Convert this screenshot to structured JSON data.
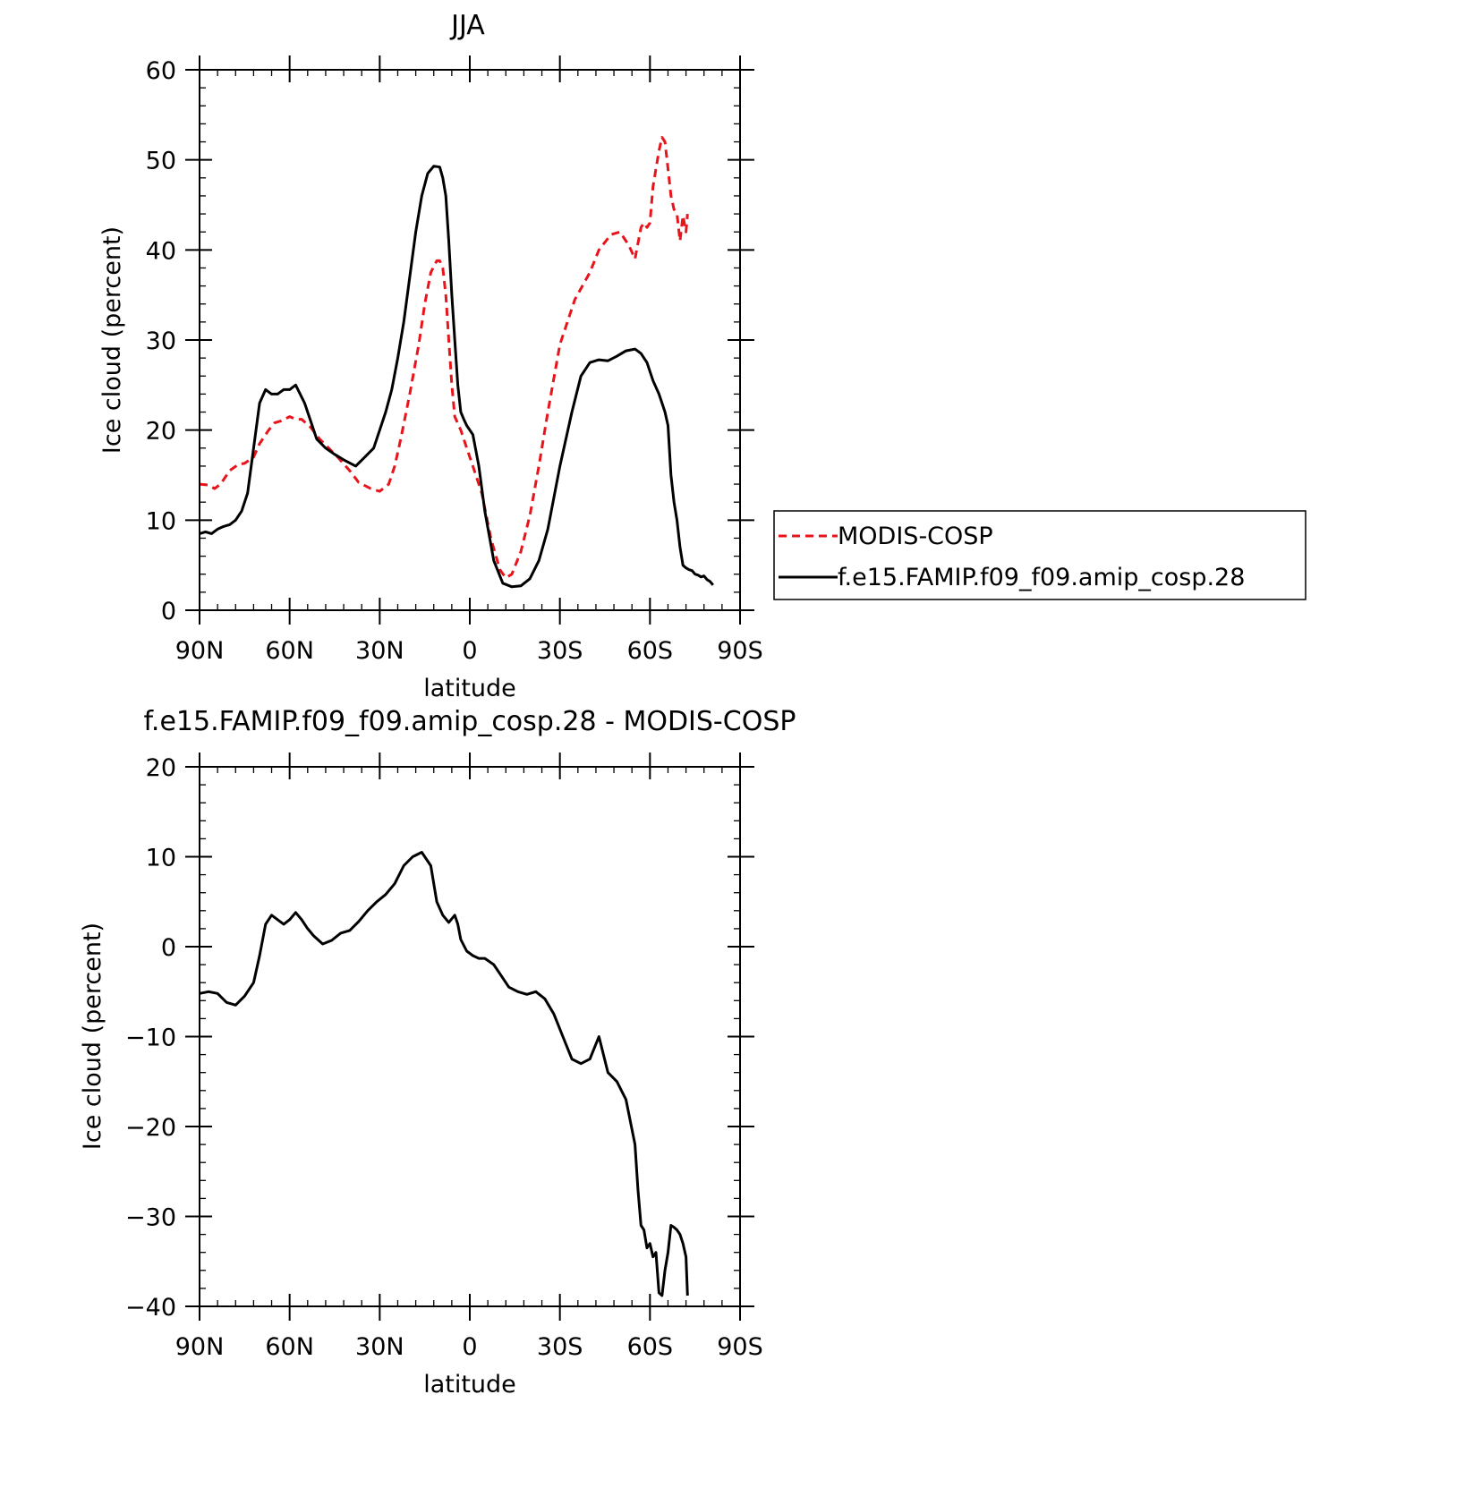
{
  "chart_data": [
    {
      "type": "line",
      "title": "JJA",
      "xlabel": "latitude",
      "ylabel": "Ice cloud (percent)",
      "xlim": [
        90,
        -90
      ],
      "ylim": [
        0,
        60
      ],
      "xticks": [
        {
          "value": 90,
          "label": "90N"
        },
        {
          "value": 60,
          "label": "60N"
        },
        {
          "value": 30,
          "label": "30N"
        },
        {
          "value": 0,
          "label": "0"
        },
        {
          "value": -30,
          "label": "30S"
        },
        {
          "value": -60,
          "label": "60S"
        },
        {
          "value": -90,
          "label": "90S"
        }
      ],
      "yticks": [
        {
          "value": 0,
          "label": "0"
        },
        {
          "value": 10,
          "label": "10"
        },
        {
          "value": 20,
          "label": "20"
        },
        {
          "value": 30,
          "label": "30"
        },
        {
          "value": 40,
          "label": "40"
        },
        {
          "value": 50,
          "label": "50"
        },
        {
          "value": 60,
          "label": "60"
        }
      ],
      "legend": {
        "placement": "right"
      },
      "series": [
        {
          "name": "MODIS-COSP",
          "color": "#e8141b",
          "dash": "dashed",
          "x": [
            90,
            87,
            85,
            83,
            80,
            77,
            75,
            72,
            70,
            67,
            65,
            63,
            60,
            58,
            56,
            53,
            50,
            47,
            44,
            40,
            37,
            33,
            30,
            27,
            25,
            23,
            20,
            17,
            15,
            13,
            11,
            10,
            9,
            8,
            7,
            6,
            5,
            3,
            1,
            -1,
            -4,
            -7,
            -10,
            -12,
            -14,
            -17,
            -20,
            -23,
            -26,
            -30,
            -35,
            -40,
            -43,
            -47,
            -50,
            -53,
            -55,
            -57,
            -58,
            -59,
            -60,
            -61,
            -62,
            -63,
            -64,
            -65,
            -66,
            -67,
            -68,
            -69,
            -70,
            -71,
            -72,
            -72.5
          ],
          "y": [
            14,
            13.9,
            13.5,
            14,
            15.5,
            16.2,
            16.3,
            17,
            18.5,
            20,
            20.8,
            21,
            21.5,
            21.2,
            21.2,
            20.3,
            19,
            18,
            17,
            15.5,
            14.2,
            13.5,
            13.2,
            14,
            16,
            19,
            24,
            29.5,
            34,
            37.5,
            38.8,
            38.8,
            38,
            35,
            30,
            25,
            21.5,
            20,
            18,
            16,
            13,
            8,
            4.5,
            3.6,
            4,
            6.5,
            10.5,
            16,
            22,
            29.5,
            34.5,
            37.5,
            40,
            41.7,
            42,
            40.5,
            39,
            42.5,
            43,
            42.5,
            43,
            47,
            49,
            51,
            52.5,
            52,
            49,
            46,
            44.5,
            44,
            41,
            43.8,
            42,
            44
          ]
        },
        {
          "name": "f.e15.FAMIP.f09_f09.amip_cosp.28",
          "color": "#000000",
          "dash": "solid",
          "x": [
            90,
            88,
            86,
            84,
            82,
            80,
            78,
            76,
            74,
            72,
            70,
            68,
            66,
            64,
            62,
            60,
            58,
            55,
            53,
            51,
            48,
            45,
            42,
            38,
            35,
            32,
            30,
            28,
            26,
            24,
            22,
            20,
            18,
            16,
            14,
            12,
            10,
            9,
            8,
            7,
            6,
            5,
            4,
            3,
            2,
            1,
            -1,
            -3,
            -5,
            -8,
            -11,
            -14,
            -17,
            -20,
            -23,
            -26,
            -30,
            -34,
            -37,
            -40,
            -43,
            -46,
            -49,
            -52,
            -55,
            -57,
            -59,
            -61,
            -63,
            -64,
            -65,
            -66,
            -67,
            -68,
            -69,
            -70,
            -71,
            -72,
            -73,
            -74,
            -75,
            -76,
            -77,
            -78,
            -79,
            -80,
            -81
          ],
          "y": [
            8.5,
            8.7,
            8.5,
            9,
            9.3,
            9.5,
            10,
            11,
            13,
            18,
            23,
            24.5,
            24,
            24,
            24.5,
            24.5,
            25,
            23,
            21,
            19,
            18,
            17.3,
            16.7,
            16,
            17,
            18,
            20,
            22,
            24.5,
            28,
            32,
            37,
            42,
            46,
            48.5,
            49.3,
            49.2,
            48,
            46,
            41,
            35,
            30,
            25,
            22,
            21.2,
            20.5,
            19.5,
            16,
            11,
            5.5,
            3,
            2.6,
            2.7,
            3.5,
            5.5,
            9,
            16,
            22,
            26,
            27.5,
            27.8,
            27.7,
            28.2,
            28.8,
            29,
            28.5,
            27.5,
            25.5,
            24,
            23,
            22,
            20.5,
            15,
            12,
            10,
            7,
            5,
            4.7,
            4.5,
            4.4,
            4,
            3.9,
            3.7,
            3.8,
            3.4,
            3.2,
            2.8
          ]
        }
      ]
    },
    {
      "type": "line",
      "title": "f.e15.FAMIP.f09_f09.amip_cosp.28 - MODIS-COSP",
      "xlabel": "latitude",
      "ylabel": "Ice cloud (percent)",
      "xlim": [
        90,
        -90
      ],
      "ylim": [
        -40,
        20
      ],
      "xticks": [
        {
          "value": 90,
          "label": "90N"
        },
        {
          "value": 60,
          "label": "60N"
        },
        {
          "value": 30,
          "label": "30N"
        },
        {
          "value": 0,
          "label": "0"
        },
        {
          "value": -30,
          "label": "30S"
        },
        {
          "value": -60,
          "label": "60S"
        },
        {
          "value": -90,
          "label": "90S"
        }
      ],
      "yticks": [
        {
          "value": -40,
          "label": "−40"
        },
        {
          "value": -30,
          "label": "−30"
        },
        {
          "value": -20,
          "label": "−20"
        },
        {
          "value": -10,
          "label": "−10"
        },
        {
          "value": 0,
          "label": "0"
        },
        {
          "value": 10,
          "label": "10"
        },
        {
          "value": 20,
          "label": "20"
        }
      ],
      "series": [
        {
          "color": "#000000",
          "dash": "solid",
          "x": [
            90,
            87,
            84,
            81,
            78,
            75,
            72,
            70,
            68,
            66,
            64,
            62,
            60,
            58,
            56,
            54,
            52,
            49,
            46,
            43,
            40,
            37,
            34,
            31,
            28,
            25,
            22,
            19,
            16,
            13,
            11,
            9,
            7,
            5,
            4,
            3,
            1,
            -1,
            -3,
            -5,
            -8,
            -10,
            -13,
            -16,
            -19,
            -22,
            -25,
            -28,
            -31,
            -34,
            -37,
            -40,
            -43,
            -46,
            -49,
            -52,
            -55,
            -56,
            -57,
            -58,
            -59,
            -60,
            -61,
            -62,
            -63,
            -64,
            -65,
            -66,
            -67,
            -68,
            -69,
            -70,
            -71,
            -72,
            -72.5
          ],
          "y": [
            -5.2,
            -5,
            -5.2,
            -6.2,
            -6.5,
            -5.5,
            -4,
            -1,
            2.5,
            3.5,
            3,
            2.5,
            3,
            3.8,
            3,
            2,
            1.2,
            0.3,
            0.7,
            1.5,
            1.8,
            2.8,
            4,
            5,
            5.8,
            7,
            9,
            10,
            10.5,
            9,
            5,
            3.5,
            2.7,
            3.5,
            2.5,
            0.8,
            -0.5,
            -1,
            -1.3,
            -1.3,
            -2,
            -3,
            -4.5,
            -5,
            -5.3,
            -5,
            -5.8,
            -7.5,
            -10,
            -12.5,
            -13,
            -12.5,
            -10,
            -14,
            -15,
            -17,
            -22,
            -27,
            -31,
            -31.5,
            -33.5,
            -33,
            -34.5,
            -34,
            -38.5,
            -38.8,
            -36,
            -34,
            -31,
            -31.2,
            -31.5,
            -32,
            -33,
            -34.5,
            -38.8
          ]
        }
      ]
    }
  ]
}
